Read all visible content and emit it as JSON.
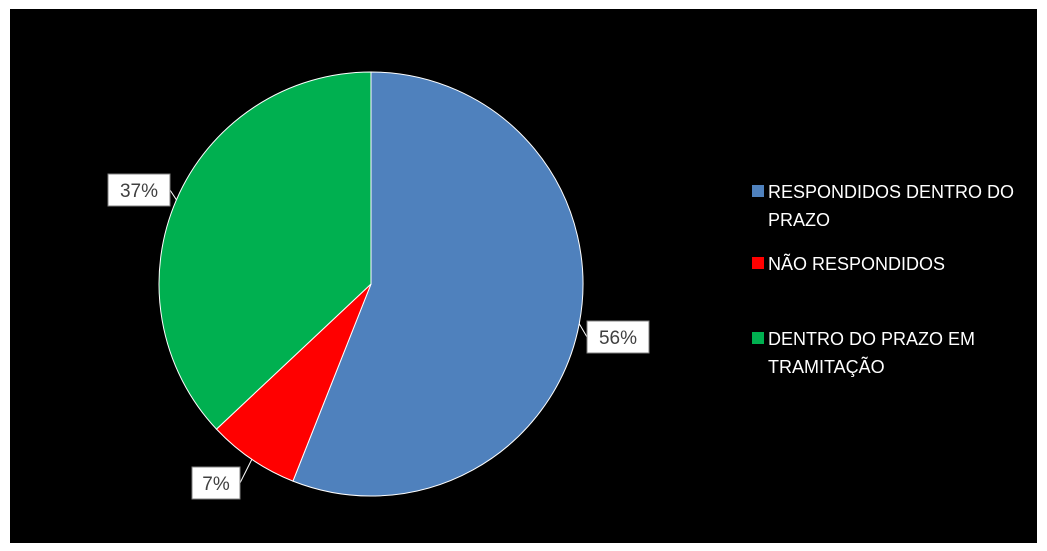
{
  "chart_data": {
    "type": "pie",
    "title": "",
    "slices": [
      {
        "label": "RESPONDIDOS DENTRO DO PRAZO",
        "value": 56,
        "display": "56%",
        "color": "#4F81BD"
      },
      {
        "label": "NÃO RESPONDIDOS",
        "value": 7,
        "display": "7%",
        "color": "#FF0000"
      },
      {
        "label": "DENTRO DO PRAZO EM TRAMITAÇÃO",
        "value": 37,
        "display": "37%",
        "color": "#00B050"
      }
    ],
    "legend_position": "right",
    "legend_lines": [
      [
        "RESPONDIDOS DENTRO DO",
        "PRAZO"
      ],
      [
        "NÃO RESPONDIDOS"
      ],
      [
        "DENTRO DO PRAZO EM",
        "TRAMITAÇÃO"
      ]
    ],
    "background": "#000000"
  }
}
